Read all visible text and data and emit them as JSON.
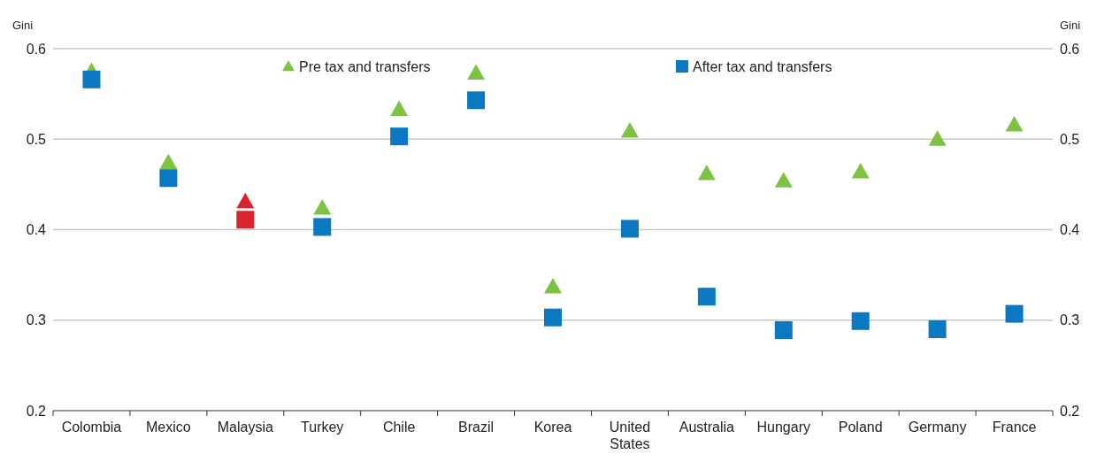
{
  "chart_data": {
    "type": "scatter",
    "ylabel": "Gini",
    "y2label": "Gini",
    "categories": [
      "Colombia",
      "Mexico",
      "Malaysia",
      "Turkey",
      "Chile",
      "Brazil",
      "Korea",
      "United States",
      "Australia",
      "Hungary",
      "Poland",
      "Germany",
      "France"
    ],
    "series": [
      {
        "name": "Pre tax and transfers",
        "color": "#7dc242",
        "marker": "triangle",
        "colors": [
          "#7dc242",
          "#7dc242",
          "#d9232d",
          "#7dc242",
          "#7dc242",
          "#7dc242",
          "#7dc242",
          "#7dc242",
          "#7dc242",
          "#7dc242",
          "#7dc242",
          "#7dc242",
          "#7dc242"
        ],
        "values": [
          0.575,
          0.474,
          0.431,
          0.424,
          0.533,
          0.573,
          0.337,
          0.509,
          0.462,
          0.454,
          0.464,
          0.5,
          0.516
        ]
      },
      {
        "name": "After tax and transfers",
        "color": "#0b78c1",
        "marker": "square",
        "colors": [
          "#0b78c1",
          "#0b78c1",
          "#d9232d",
          "#0b78c1",
          "#0b78c1",
          "#0b78c1",
          "#0b78c1",
          "#0b78c1",
          "#0b78c1",
          "#0b78c1",
          "#0b78c1",
          "#0b78c1",
          "#0b78c1"
        ],
        "values": [
          0.566,
          0.457,
          0.411,
          0.403,
          0.503,
          0.543,
          0.303,
          0.401,
          0.326,
          0.289,
          0.299,
          0.29,
          0.307
        ]
      }
    ],
    "ylim": [
      0.2,
      0.6
    ],
    "yticks": [
      0.2,
      0.3,
      0.4,
      0.5,
      0.6
    ],
    "y2lim": [
      0.2,
      0.6
    ],
    "y2ticks": [
      0.2,
      0.3,
      0.4,
      0.5,
      0.6
    ],
    "grid": "y",
    "legend": "top"
  }
}
